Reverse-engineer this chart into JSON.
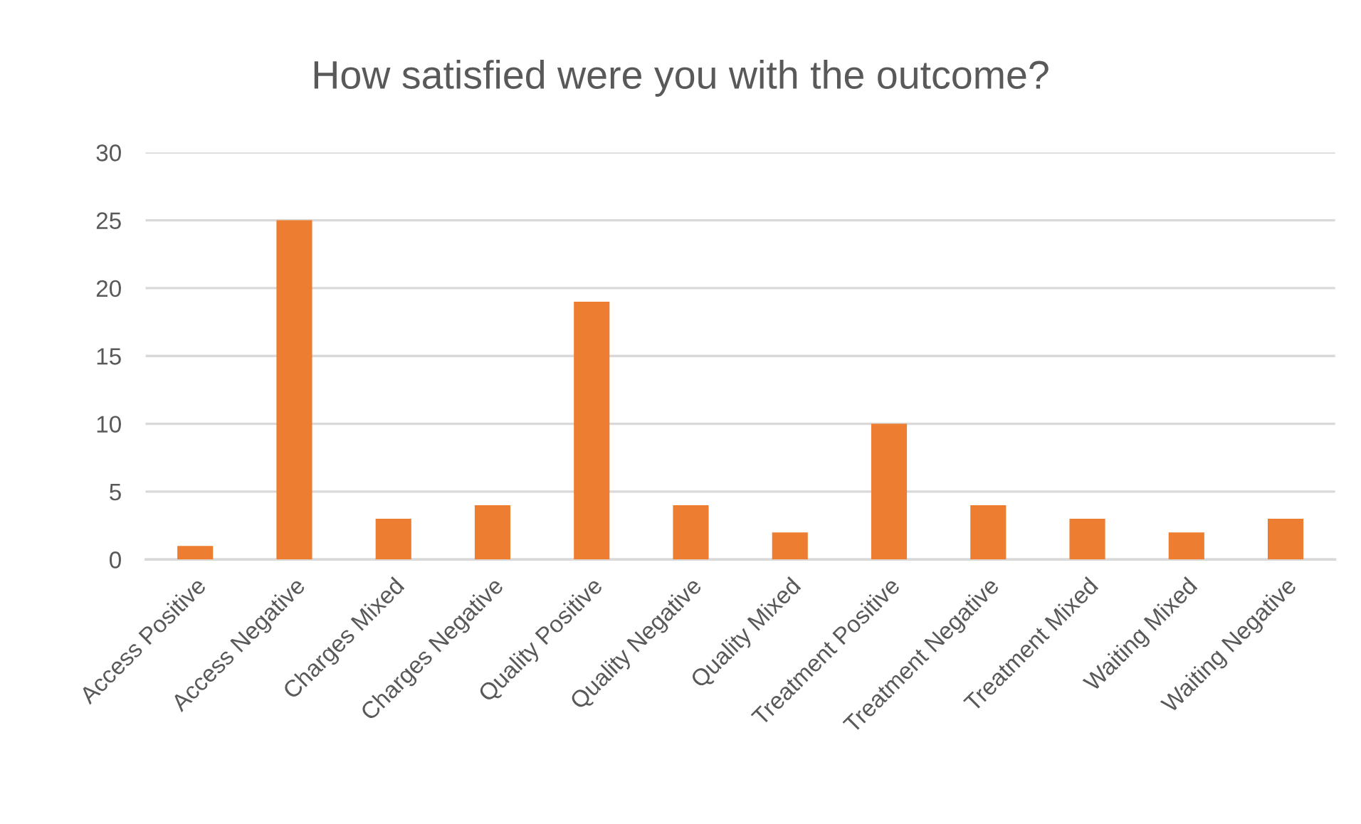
{
  "chart_data": {
    "type": "bar",
    "title": "How satisfied were you with the outcome?",
    "categories": [
      "Access Positive",
      "Access Negative",
      "Charges Mixed",
      "Charges Negative",
      "Quality Positive",
      "Quality Negative",
      "Quality Mixed",
      "Treatment Positive",
      "Treatment Negative",
      "Treatment Mixed",
      "Waiting Mixed",
      "Waiting Negative"
    ],
    "values": [
      1,
      25,
      3,
      4,
      19,
      4,
      2,
      10,
      4,
      3,
      2,
      3
    ],
    "color": "#ed7d31",
    "ylim": [
      0,
      30
    ],
    "yticks": [
      0,
      5,
      10,
      15,
      20,
      25,
      30
    ],
    "grid": "y",
    "legend": false
  }
}
